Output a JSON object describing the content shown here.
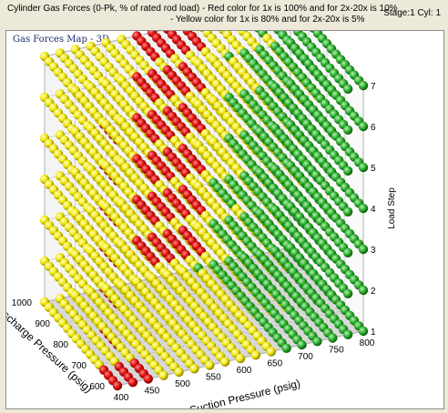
{
  "header": {
    "line1": "Cylinder Gas Forces (0-Pk, % of rated rod load)  - Red color for 1x is 100% and  for 2x-20x is 10%",
    "line2": "- Yellow color for 1x is 80% and  for 2x-20x is 5%",
    "stage": "Stage:1 Cyl: 1"
  },
  "panel": {
    "title": "Gas Forces Map - 3D"
  },
  "colors": {
    "red": "#dd1010",
    "yellow": "#f2e810",
    "green": "#2db02d",
    "panel_border": "#8e8e8e",
    "title": "#1a2a6c"
  },
  "chart_data": {
    "type": "scatter",
    "title": "Gas Forces Map - 3D",
    "xlabel": "Suction Pressure (psig)",
    "ylabel": "Discharge Pressure (psig)",
    "zlabel": "Load Step",
    "x_ticks": [
      "400",
      "450",
      "500",
      "550",
      "600",
      "650",
      "700",
      "750",
      "800"
    ],
    "y_ticks": [
      "600",
      "700",
      "800",
      "900",
      "1000"
    ],
    "z_ticks": [
      "1",
      "2",
      "3",
      "4",
      "5",
      "6",
      "7"
    ],
    "xlim": [
      400,
      800
    ],
    "ylim": [
      600,
      1000
    ],
    "zlim": [
      1,
      7
    ],
    "grid": true,
    "layer_points": [
      {
        "z": 1,
        "red_suction_max": 450,
        "green_suction_min": 650
      },
      {
        "z": 2,
        "red_suction_max": 420,
        "green_suction_min": 660
      },
      {
        "z": 3,
        "red_suction_max": 400,
        "green_suction_min": 670
      },
      {
        "z": 4,
        "red_suction_max": 400,
        "green_suction_min": 680
      },
      {
        "z": 5,
        "red_suction_max": 400,
        "green_suction_min": 690
      },
      {
        "z": 6,
        "red_suction_max": 400,
        "green_suction_min": 700
      },
      {
        "z": 7,
        "red_suction_max": 400,
        "green_suction_min": 720
      }
    ]
  }
}
